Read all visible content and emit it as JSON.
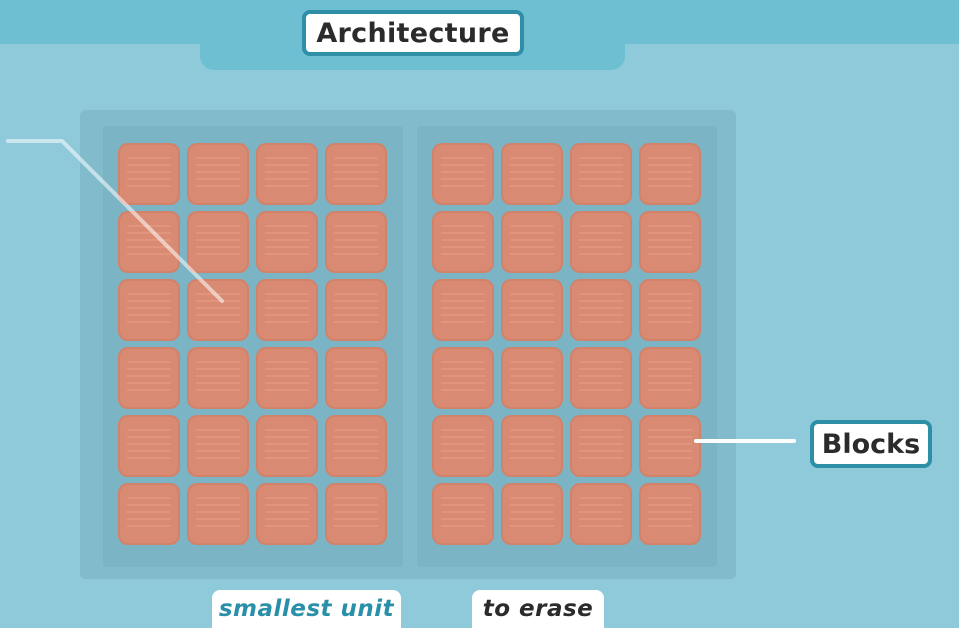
{
  "title": "Architecture",
  "label_blocks": "Blocks",
  "captions": [
    "smallest unit",
    "to erase"
  ],
  "planes": [
    {
      "rows": 6,
      "cols": 4
    },
    {
      "rows": 6,
      "cols": 4
    }
  ],
  "colors": {
    "background": "#8fcadb",
    "band": "#6dbfd1",
    "accent": "#2e8fa6",
    "block": "#d98a72",
    "caption_accent": "#2a8fa8"
  }
}
